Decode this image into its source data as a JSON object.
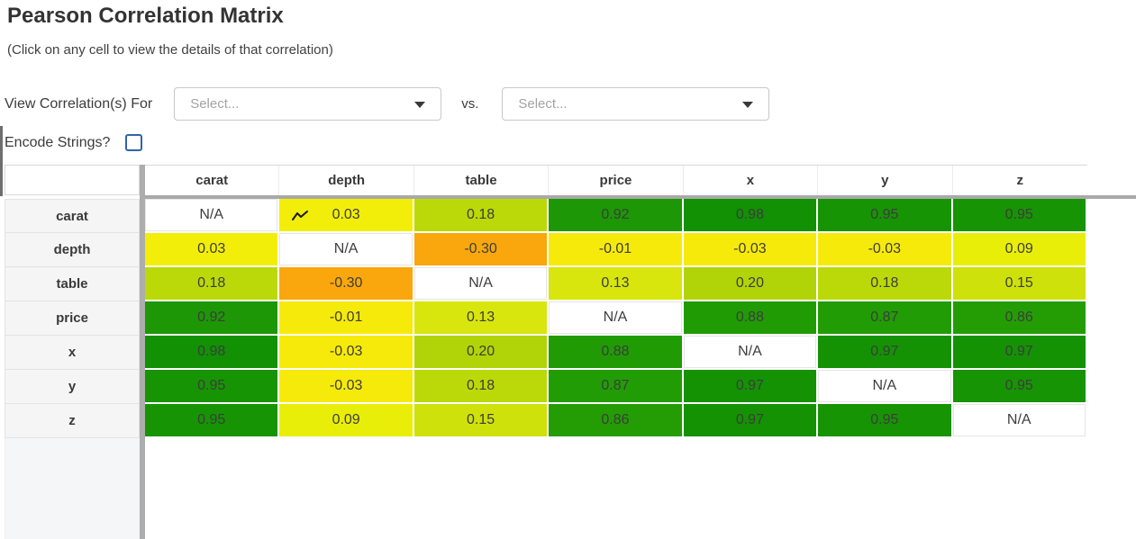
{
  "page": {
    "title": "Pearson Correlation Matrix",
    "subtitle": "(Click on any cell to view the details of that correlation)"
  },
  "controls": {
    "view_label": "View Correlation(s) For",
    "vs_label": "vs.",
    "dropdown1": {
      "placeholder": "Select...",
      "icon": "chevron-down-icon"
    },
    "dropdown2": {
      "placeholder": "Select...",
      "icon": "chevron-down-icon"
    },
    "encode_label": "Encode Strings?",
    "encode_checked": false
  },
  "colors": {
    "checkbox_border": "#2f64ad",
    "divider_gray": "#adadad",
    "header_underline_gray": "#a9a9a9",
    "row_header_bg": "#f5f5f5",
    "cell_text": "#3d3d3d"
  },
  "matrix": {
    "columns": [
      "carat",
      "depth",
      "table",
      "price",
      "x",
      "y",
      "z"
    ],
    "rows": [
      {
        "label": "carat",
        "icon_cell": "depth",
        "cells": [
          "N/A",
          "0.03",
          "0.18",
          "0.92",
          "0.98",
          "0.95",
          "0.95"
        ]
      },
      {
        "label": "depth",
        "cells": [
          "0.03",
          "N/A",
          "-0.30",
          "-0.01",
          "-0.03",
          "-0.03",
          "0.09"
        ]
      },
      {
        "label": "table",
        "cells": [
          "0.18",
          "-0.30",
          "N/A",
          "0.13",
          "0.20",
          "0.18",
          "0.15"
        ]
      },
      {
        "label": "price",
        "cells": [
          "0.92",
          "-0.01",
          "0.13",
          "N/A",
          "0.88",
          "0.87",
          "0.86"
        ]
      },
      {
        "label": "x",
        "cells": [
          "0.98",
          "-0.03",
          "0.20",
          "0.88",
          "N/A",
          "0.97",
          "0.97"
        ]
      },
      {
        "label": "y",
        "cells": [
          "0.95",
          "-0.03",
          "0.18",
          "0.87",
          "0.97",
          "N/A",
          "0.95"
        ]
      },
      {
        "label": "z",
        "cells": [
          "0.95",
          "0.09",
          "0.15",
          "0.86",
          "0.97",
          "0.95",
          "N/A"
        ]
      }
    ],
    "value_colors": {
      "0.98": "#119103",
      "0.97": "#149203",
      "0.95": "#179403",
      "0.92": "#1d9705",
      "0.88": "#219b04",
      "0.87": "#229c04",
      "0.86": "#249d04",
      "0.20": "#b1d408",
      "0.18": "#bbd908",
      "0.15": "#cfe10a",
      "0.13": "#d8e60d",
      "0.09": "#e9ee09",
      "0.03": "#f2ee0a",
      "-0.01": "#f6ea0b",
      "-0.03": "#f6ea0b",
      "-0.30": "#f9a70c",
      "N/A": "#ffffff"
    },
    "sparkline_icon": "trend-line-icon"
  }
}
